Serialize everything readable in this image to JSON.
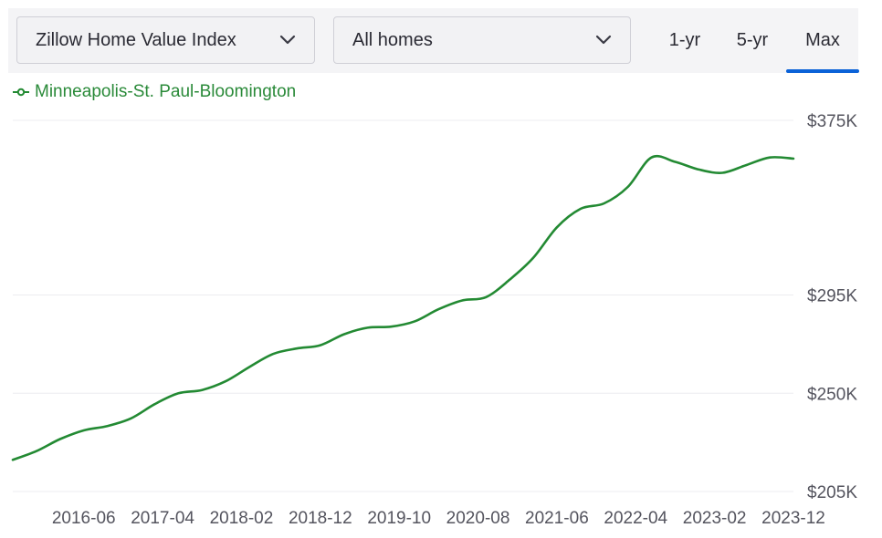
{
  "controls": {
    "metric_select": "Zillow Home Value Index",
    "homes_select": "All homes",
    "tabs": [
      "1-yr",
      "5-yr",
      "Max"
    ],
    "active_tab": "Max"
  },
  "colors": {
    "series": "#238a33",
    "accent": "#0a62d8",
    "grid": "#ececf0"
  },
  "chart_data": {
    "type": "line",
    "title": "",
    "xlabel": "",
    "ylabel": "",
    "ylim": [
      205000,
      375000
    ],
    "y_ticks": [
      {
        "value": 205000,
        "label": "$205K"
      },
      {
        "value": 250000,
        "label": "$250K"
      },
      {
        "value": 295000,
        "label": "$295K"
      },
      {
        "value": 375000,
        "label": "$375K"
      }
    ],
    "x_ticks": [
      "2016-06",
      "2017-04",
      "2018-02",
      "2018-12",
      "2019-10",
      "2020-08",
      "2021-06",
      "2022-04",
      "2023-02",
      "2023-12"
    ],
    "x_start": "2015-09",
    "x_end": "2023-12",
    "series": [
      {
        "name": "Minneapolis-St. Paul-Bloomington",
        "color": "#238a33",
        "points": [
          [
            "2015-09",
            219500
          ],
          [
            "2015-12",
            223500
          ],
          [
            "2016-03",
            229000
          ],
          [
            "2016-06",
            233000
          ],
          [
            "2016-09",
            235000
          ],
          [
            "2016-12",
            238500
          ],
          [
            "2017-03",
            245000
          ],
          [
            "2017-06",
            250000
          ],
          [
            "2017-09",
            251500
          ],
          [
            "2017-12",
            255500
          ],
          [
            "2018-03",
            262000
          ],
          [
            "2018-06",
            268000
          ],
          [
            "2018-09",
            270500
          ],
          [
            "2018-12",
            272000
          ],
          [
            "2019-03",
            277000
          ],
          [
            "2019-06",
            280000
          ],
          [
            "2019-09",
            280500
          ],
          [
            "2019-12",
            283000
          ],
          [
            "2020-03",
            288500
          ],
          [
            "2020-06",
            292500
          ],
          [
            "2020-09",
            294000
          ],
          [
            "2020-12",
            302000
          ],
          [
            "2021-03",
            312000
          ],
          [
            "2021-06",
            326000
          ],
          [
            "2021-09",
            334500
          ],
          [
            "2021-12",
            337000
          ],
          [
            "2022-03",
            344500
          ],
          [
            "2022-06",
            358000
          ],
          [
            "2022-09",
            356000
          ],
          [
            "2022-12",
            352500
          ],
          [
            "2023-03",
            351000
          ],
          [
            "2023-06",
            354500
          ],
          [
            "2023-09",
            358000
          ],
          [
            "2023-12",
            357500
          ]
        ]
      }
    ]
  }
}
